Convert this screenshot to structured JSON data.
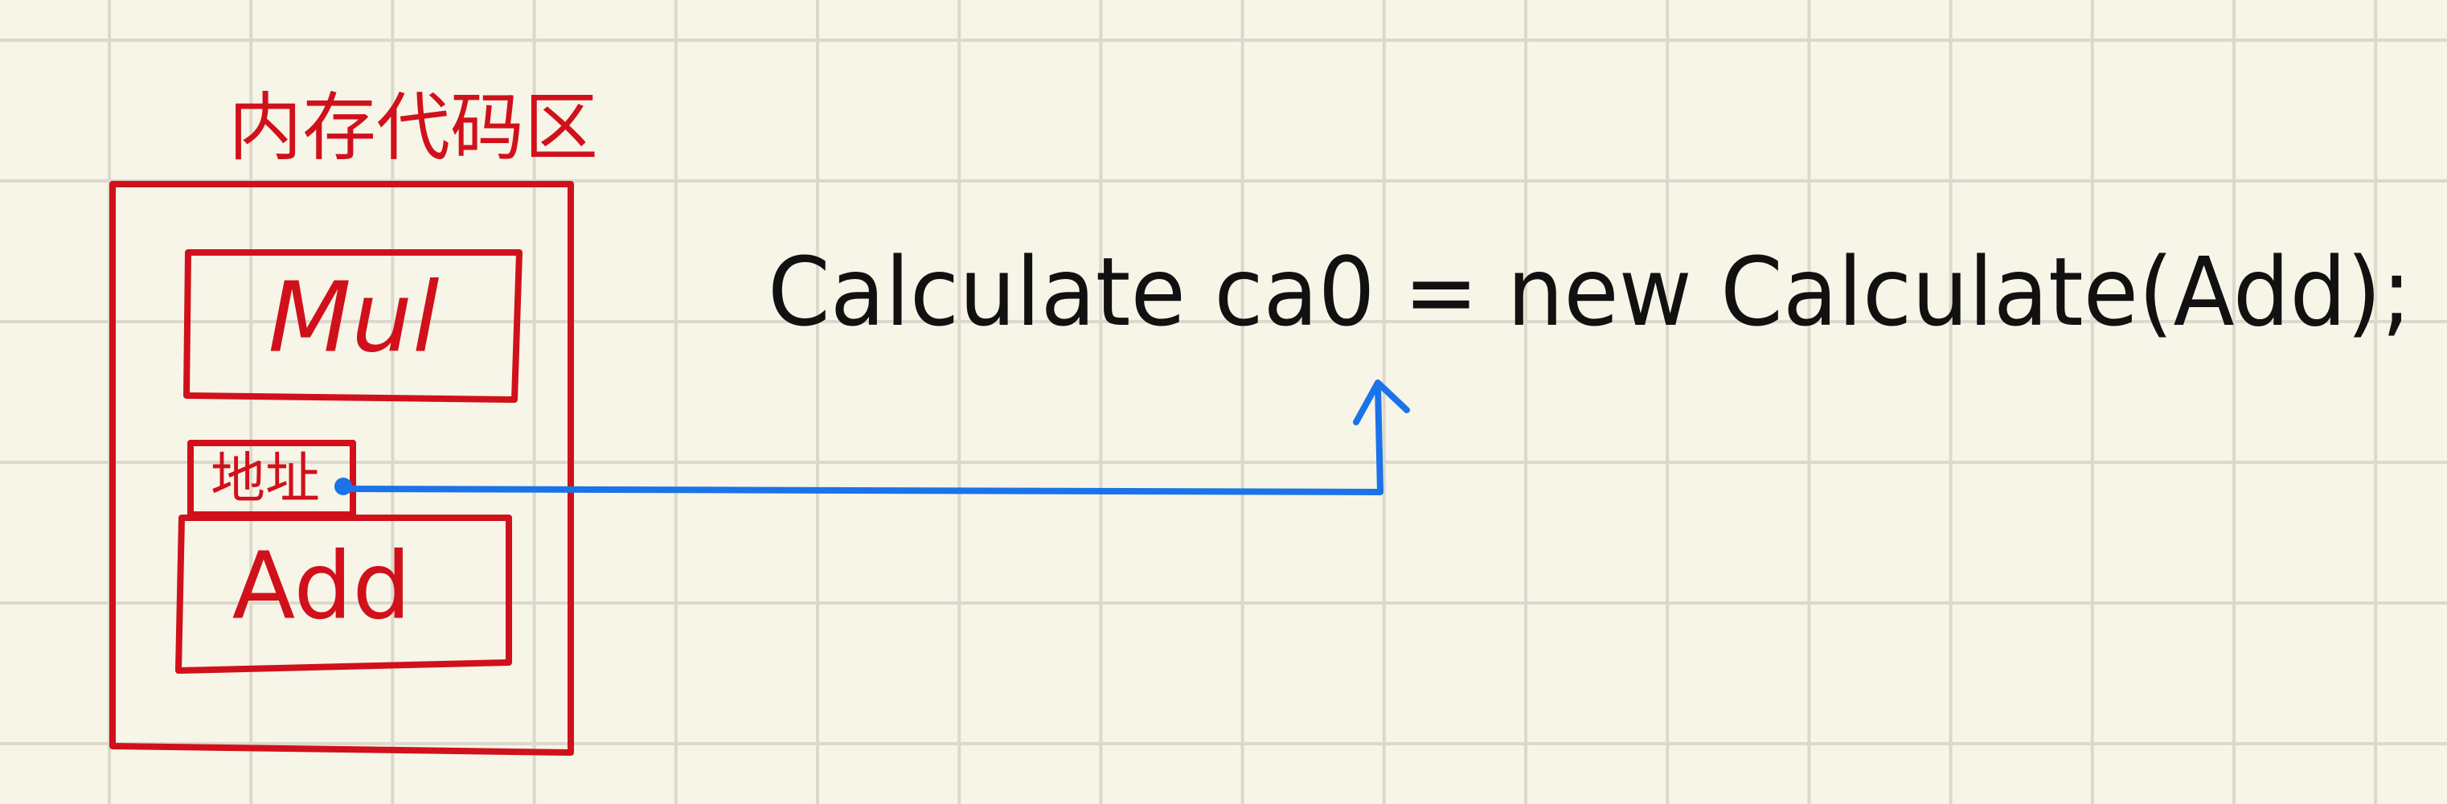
{
  "memory_area": {
    "title": "内存代码区",
    "boxes": [
      {
        "label": "Mul"
      },
      {
        "label": "地址"
      },
      {
        "label": "Add"
      }
    ]
  },
  "code": {
    "text": "Calculate ca0 = new Calculate(Add);"
  }
}
